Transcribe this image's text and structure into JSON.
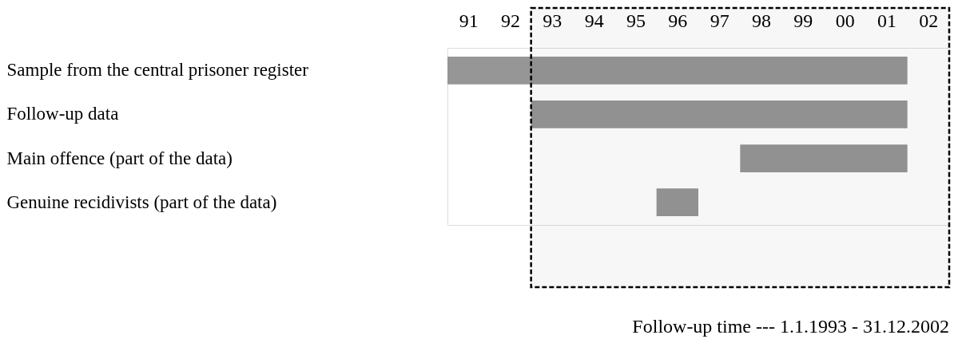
{
  "chart_data": {
    "type": "bar",
    "orientation": "horizontal",
    "categories": [
      "Sample from the central prisoner register",
      "Follow-up data",
      "Main offence (part of the data)",
      "Genuine recidivists (part of the data)"
    ],
    "base": [
      1990.5,
      1992.5,
      1997.5,
      1995.5
    ],
    "values": [
      11,
      9,
      4,
      1
    ],
    "color": "#969696",
    "xlim": [
      1990.5,
      2002.5
    ],
    "xticks": [
      {
        "value": 1991,
        "label": "91"
      },
      {
        "value": 1992,
        "label": "92"
      },
      {
        "value": 1993,
        "label": "93"
      },
      {
        "value": 1994,
        "label": "94"
      },
      {
        "value": 1995,
        "label": "95"
      },
      {
        "value": 1996,
        "label": "96"
      },
      {
        "value": 1997,
        "label": "97"
      },
      {
        "value": 1998,
        "label": "98"
      },
      {
        "value": 1999,
        "label": "99"
      },
      {
        "value": 2000,
        "label": "00"
      },
      {
        "value": 2001,
        "label": "01"
      },
      {
        "value": 2002,
        "label": "02"
      }
    ],
    "bands": [
      {
        "axis": "x",
        "from": 1992.5,
        "to": 2002.5,
        "label": "Follow-up time --- 1.1.1993 - 31.12.2002",
        "color": "#000000"
      }
    ],
    "grid": false
  }
}
